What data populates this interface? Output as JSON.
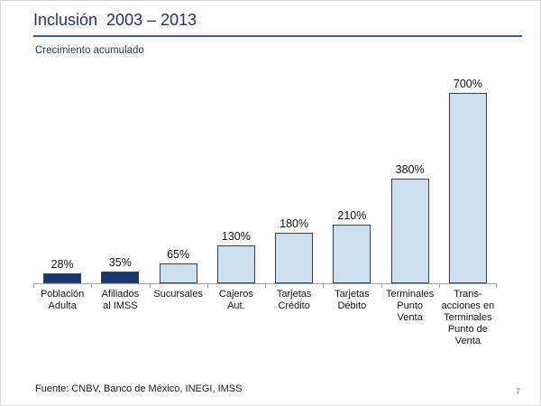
{
  "slide": {
    "title": "Inclusión  2003 – 2013",
    "subtitle": "Crecimiento acumulado",
    "footer": "Fuente: CNBV, Banco de México, INEGI, IMSS",
    "page_number": "7"
  },
  "colors": {
    "title_text": "#242E7D",
    "subtitle_text": "#1E3C78",
    "title_rule": "#3A5F9E",
    "bar_dark": "#17366B",
    "bar_light": "#CDE0F0",
    "bar_border": "#404040",
    "axis_line": "#A0A0A0",
    "label_text": "#111111",
    "page_number_text": "#808080"
  },
  "chart_data": {
    "type": "bar",
    "title": "Crecimiento acumulado",
    "xlabel": "",
    "ylabel": "",
    "categories": [
      "Población Adulta",
      "Afiliados al IMSS",
      "Sucursales",
      "Cajeros Aut.",
      "Tarjetas Crédito",
      "Tarjetas Débito",
      "Terminales Punto Venta",
      "Trans-acciones en Terminales Punto de Venta"
    ],
    "category_display": [
      "Población\nAdulta",
      "Afiliados\nal IMSS",
      "Sucursales",
      "Cajeros\nAut.",
      "Tarjetas\nCrédito",
      "Tarjetas\nDébito",
      "Terminales\nPunto\nVenta",
      "Trans-\nacciones en\nTerminales\nPunto de\nVenta"
    ],
    "values": [
      28,
      35,
      65,
      130,
      180,
      210,
      380,
      700
    ],
    "data_labels": [
      "28%",
      "35%",
      "65%",
      "130%",
      "180%",
      "210%",
      "380%",
      "700%"
    ],
    "series_colors": [
      "#17366B",
      "#17366B",
      "#CDE0F0",
      "#CDE0F0",
      "#CDE0F0",
      "#CDE0F0",
      "#CDE0F0",
      "#CDE0F0"
    ],
    "ylim": [
      0,
      700
    ],
    "grid": false,
    "legend": false
  }
}
